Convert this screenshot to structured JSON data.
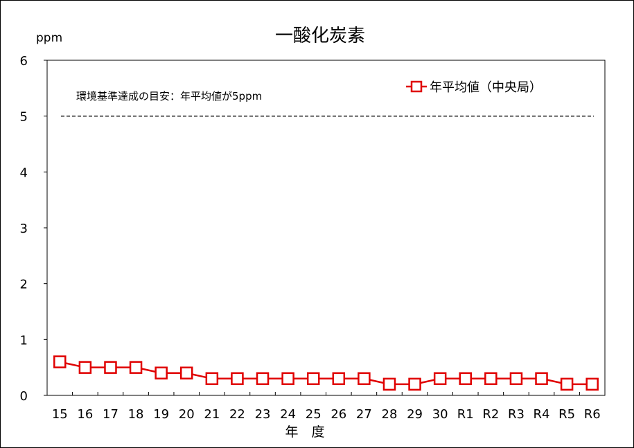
{
  "chart_data": {
    "type": "line",
    "title": "一酸化炭素",
    "ylabel": "ppm",
    "xlabel": "年　度",
    "ylim": [
      0,
      6
    ],
    "yticks": [
      0,
      1,
      2,
      3,
      4,
      5,
      6
    ],
    "categories": [
      "15",
      "16",
      "17",
      "18",
      "19",
      "20",
      "21",
      "22",
      "23",
      "24",
      "25",
      "26",
      "27",
      "28",
      "29",
      "30",
      "R1",
      "R2",
      "R3",
      "R4",
      "R5",
      "R6"
    ],
    "series": [
      {
        "name": "年平均値（中央局）",
        "color": "#e00000",
        "marker": "square-open",
        "values": [
          0.6,
          0.5,
          0.5,
          0.5,
          0.4,
          0.4,
          0.3,
          0.3,
          0.3,
          0.3,
          0.3,
          0.3,
          0.3,
          0.2,
          0.2,
          0.3,
          0.3,
          0.3,
          0.3,
          0.3,
          0.2,
          0.2
        ]
      }
    ],
    "reference_line": {
      "value": 5,
      "style": "dashed",
      "label": "環境基準達成の目安：年平均値が5ppm"
    },
    "legend_position": "top-right",
    "grid": false
  }
}
